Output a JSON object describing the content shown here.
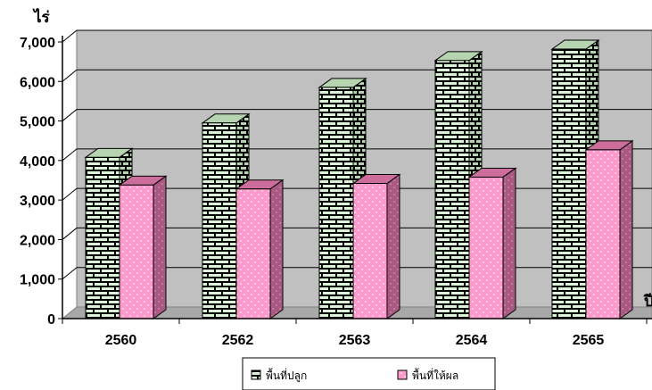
{
  "chart_data": {
    "type": "bar",
    "style": "3d-clustered-column",
    "ylabel": "ไร่",
    "xlabel": "ปี",
    "categories": [
      "2560",
      "2562",
      "2563",
      "2564",
      "2565"
    ],
    "ylim": [
      0,
      7000
    ],
    "yticks": [
      "0",
      "1,000",
      "2,000",
      "3,000",
      "4,000",
      "5,000",
      "6,000",
      "7,000"
    ],
    "grid": true,
    "legend_position": "bottom",
    "series": [
      {
        "name": "พื้นที่ปลูก",
        "values": [
          4080,
          4950,
          5850,
          6530,
          6820
        ],
        "color": "#dcf5d8",
        "pattern": "brick"
      },
      {
        "name": "พื้นที่ให้ผล",
        "values": [
          3380,
          3280,
          3420,
          3580,
          4270
        ],
        "color": "#ff99cc",
        "pattern": "dots"
      }
    ]
  }
}
